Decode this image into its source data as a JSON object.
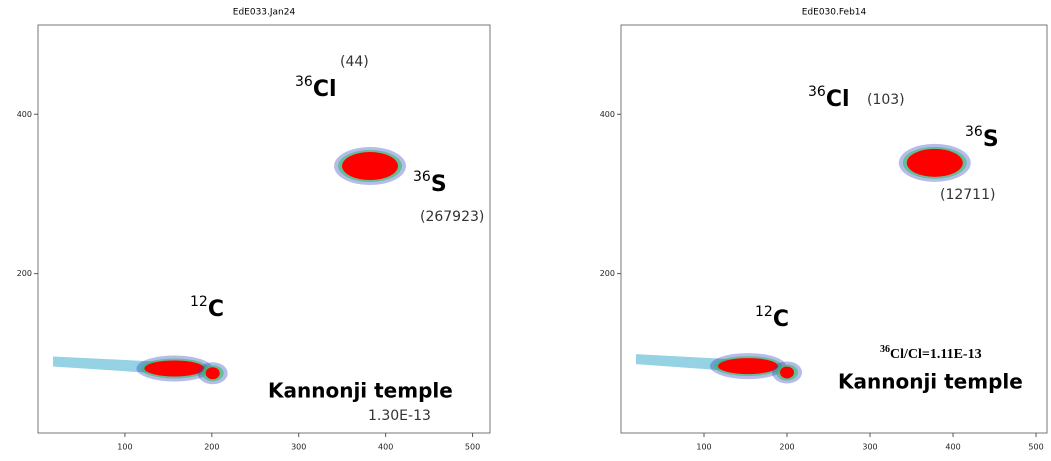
{
  "chart_data": [
    {
      "type": "density",
      "title": "EdE033.Jan24",
      "xlim": [
        0,
        512
      ],
      "xticks": [
        100,
        200,
        300,
        400,
        500
      ],
      "ylim": [
        0,
        512
      ],
      "yticks": [
        200,
        400
      ],
      "clusters": [
        {
          "x": 382,
          "y": 335,
          "color": "#ff0000"
        },
        {
          "x": 157,
          "y": 81,
          "color": "#ff0000"
        },
        {
          "x": 201,
          "y": 75,
          "color": "#ff0000"
        }
      ],
      "annotations": [
        {
          "mass": 36,
          "element": "Cl",
          "value": 44,
          "value_label": "(44)"
        },
        {
          "mass": 36,
          "element": "S",
          "value": 267923,
          "value_label": "(267923)"
        },
        {
          "mass": 12,
          "element": "C"
        }
      ],
      "site": "Kannonji temple",
      "ratio": {
        "text": "1.30E-13"
      }
    },
    {
      "type": "density",
      "title": "EdE030.Feb14",
      "xlim": [
        0,
        512
      ],
      "xticks": [
        100,
        200,
        300,
        400,
        500
      ],
      "ylim": [
        0,
        512
      ],
      "yticks": [
        200,
        400
      ],
      "clusters": [
        {
          "x": 378,
          "y": 339,
          "color": "#ff0000"
        },
        {
          "x": 153,
          "y": 84,
          "color": "#ff0000"
        },
        {
          "x": 200,
          "y": 76,
          "color": "#ff0000"
        }
      ],
      "annotations": [
        {
          "mass": 36,
          "element": "Cl",
          "value": 103,
          "value_label": "(103)"
        },
        {
          "mass": 36,
          "element": "S",
          "value": 12711,
          "value_label": "(12711)"
        },
        {
          "mass": 12,
          "element": "C"
        }
      ],
      "site": "Kannonji temple",
      "ratio": {
        "mass": 36,
        "text": "Cl/Cl=1.11E-13"
      }
    }
  ]
}
